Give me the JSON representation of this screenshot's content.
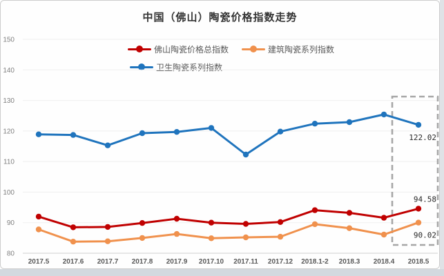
{
  "title": "中国（佛山）陶瓷价格指数走势",
  "legend": {
    "items": [
      {
        "label": "佛山陶瓷价格总指数",
        "color": "#c00000"
      },
      {
        "label": "建筑陶瓷系列指数",
        "color": "#f0914d"
      },
      {
        "label": "卫生陶瓷系列指数",
        "color": "#1f74bd"
      }
    ]
  },
  "chart_data": {
    "type": "line",
    "title": "中国（佛山）陶瓷价格指数走势",
    "xlabel": "",
    "ylabel": "",
    "ylim": [
      80,
      150
    ],
    "yticks": [
      80,
      90,
      100,
      110,
      120,
      130,
      140,
      150
    ],
    "grid": false,
    "legend_position": "top",
    "categories": [
      "2017.5",
      "2017.6",
      "2017.7",
      "2017.8",
      "2017.9",
      "2017.10",
      "2017.11",
      "2017.12",
      "2018.1-2",
      "2018.3",
      "2018.4",
      "2018.5"
    ],
    "series": [
      {
        "name": "佛山陶瓷价格总指数",
        "color": "#c00000",
        "values": [
          92.0,
          88.5,
          88.6,
          89.9,
          91.3,
          90.0,
          89.6,
          90.2,
          94.1,
          93.2,
          91.6,
          94.58
        ]
      },
      {
        "name": "建筑陶瓷系列指数",
        "color": "#f0914d",
        "values": [
          87.8,
          83.8,
          83.9,
          85.0,
          86.3,
          84.9,
          85.2,
          85.4,
          89.5,
          88.2,
          86.1,
          90.02
        ]
      },
      {
        "name": "卫生陶瓷系列指数",
        "color": "#1f74bd",
        "values": [
          118.9,
          118.7,
          115.3,
          119.3,
          119.7,
          121.0,
          112.3,
          119.8,
          122.4,
          122.9,
          125.4,
          122.02
        ]
      }
    ],
    "annotations": [
      {
        "series": "卫生陶瓷系列指数",
        "label": "122.02",
        "placement": "below"
      },
      {
        "series": "佛山陶瓷价格总指数",
        "label": "94.58",
        "placement": "above"
      },
      {
        "series": "建筑陶瓷系列指数",
        "label": "90.02",
        "placement": "below"
      }
    ],
    "highlight": {
      "type": "dashed-box",
      "category": "2018.5",
      "color": "#a6a6a6"
    }
  },
  "colors": {
    "axis_line": "#d9d9d9",
    "grid_line": "#efefef",
    "y_tick_text": "#7f7f7f",
    "x_tick_text": "#595959",
    "data_label_text": "#262626",
    "highlight_box": "#a6a6a6"
  }
}
